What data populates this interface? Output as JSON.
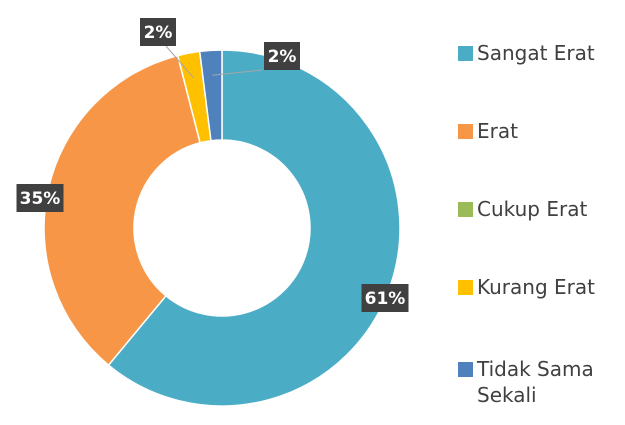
{
  "chart_data": {
    "type": "donut",
    "categories": [
      "Sangat Erat",
      "Erat",
      "Cukup Erat",
      "Kurang Erat",
      "Tidak Sama Sekali"
    ],
    "values": [
      61,
      35,
      0,
      2,
      2
    ],
    "value_labels": [
      "61%",
      "35%",
      null,
      "2%",
      "2%"
    ],
    "colors": [
      "#4bacc6",
      "#f79646",
      "#9bbb59",
      "#ffc000",
      "#4f81bd"
    ],
    "legend": "right"
  }
}
